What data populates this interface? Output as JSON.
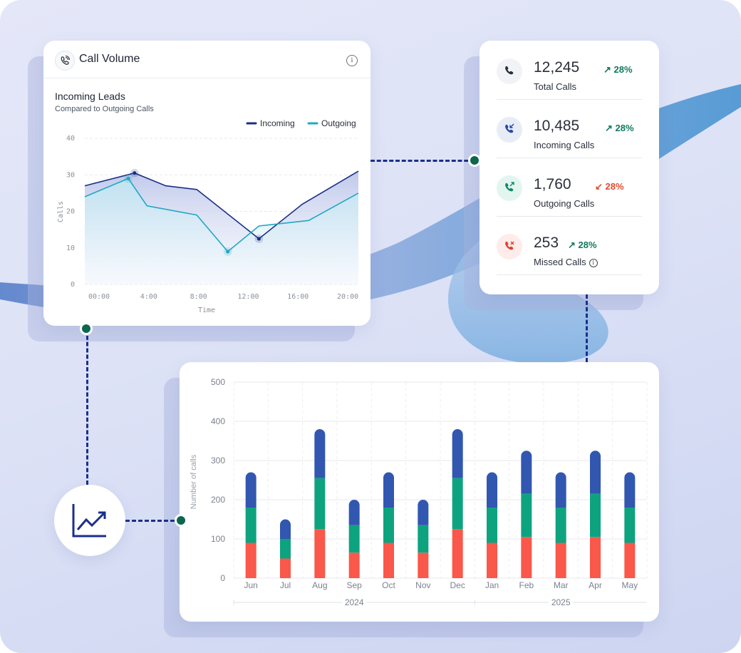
{
  "colors": {
    "incoming_line": "#1b2f86",
    "outgoing_line": "#22a7c4",
    "bar_red": "#f9584a",
    "bar_green": "#0ea37f",
    "bar_blue": "#3157b0",
    "node_green": "#0d6650"
  },
  "call_volume": {
    "title": "Call Volume",
    "header_icon": "phone-icon",
    "info_icon": "info-icon",
    "info_glyph": "i",
    "subtitle": "Incoming Leads",
    "caption": "Compared to Outgoing Calls"
  },
  "stats": [
    {
      "icon": "phone-icon",
      "value": "12,245",
      "delta": "28%",
      "trend": "up",
      "label": "Total Calls"
    },
    {
      "icon": "phone-incoming-icon",
      "value": "10,485",
      "delta": "28%",
      "trend": "up",
      "label": "Incoming Calls"
    },
    {
      "icon": "phone-outgoing-icon",
      "value": "1,760",
      "delta": "28%",
      "trend": "down",
      "label": "Outgoing Calls"
    },
    {
      "icon": "phone-missed-icon",
      "value": "253",
      "delta": "28%",
      "trend": "up",
      "label": "Missed Calls"
    }
  ],
  "stats_info_glyph": "i",
  "chart_data": [
    {
      "type": "line",
      "xlabel": "Time",
      "ylabel": "Calls",
      "x_ticks": [
        "00:00",
        "4:00",
        "8:00",
        "12:00",
        "16:00",
        "20:00"
      ],
      "y_ticks": [
        0,
        10,
        20,
        30,
        40
      ],
      "ylim": [
        0,
        40
      ],
      "xlim": [
        0,
        22
      ],
      "legend_position": "top-right",
      "grid": true,
      "series": [
        {
          "name": "Incoming",
          "x": [
            0,
            4,
            6.5,
            9,
            14,
            17.5,
            22
          ],
          "values": [
            27,
            30.5,
            27,
            26,
            12.5,
            22,
            31
          ]
        },
        {
          "name": "Outgoing",
          "x": [
            0,
            3.5,
            5,
            9,
            11.5,
            14,
            18,
            22
          ],
          "values": [
            24,
            29,
            21.5,
            19,
            9,
            16,
            17.5,
            25
          ]
        }
      ]
    },
    {
      "type": "bar",
      "stacked": true,
      "ylabel": "Number of calls",
      "categories": [
        "Jun",
        "Jul",
        "Aug",
        "Sep",
        "Oct",
        "Nov",
        "Dec",
        "Jan",
        "Feb",
        "Mar",
        "Apr",
        "May"
      ],
      "groups": [
        {
          "label": "2024",
          "categories": [
            "Jun",
            "Jul",
            "Aug",
            "Sep",
            "Oct",
            "Nov",
            "Dec"
          ]
        },
        {
          "label": "2025",
          "categories": [
            "Jan",
            "Feb",
            "Mar",
            "Apr",
            "May"
          ]
        }
      ],
      "y_ticks": [
        0,
        100,
        200,
        300,
        400,
        500
      ],
      "ylim": [
        0,
        500
      ],
      "grid": true,
      "series": [
        {
          "values": [
            90,
            50,
            125,
            65,
            90,
            65,
            125,
            90,
            105,
            90,
            105,
            90
          ]
        },
        {
          "values": [
            90,
            50,
            130,
            70,
            90,
            70,
            130,
            90,
            110,
            90,
            110,
            90
          ]
        },
        {
          "values": [
            90,
            50,
            125,
            65,
            90,
            65,
            125,
            90,
            110,
            90,
            110,
            90
          ]
        }
      ]
    }
  ]
}
